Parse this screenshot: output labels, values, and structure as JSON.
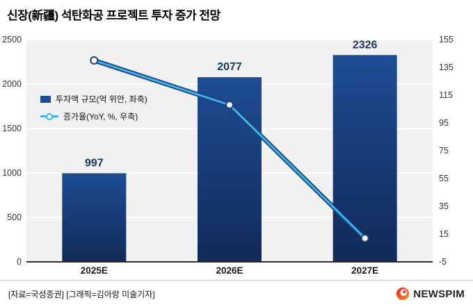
{
  "title": "신장(新疆) 석탄화공 프로젝트 투자 증가 전망",
  "footer": {
    "source": "[자료=국성증권] [그래픽=김아랑 미술기자]",
    "logo_text": "NEWSPIM"
  },
  "colors": {
    "bar_top": "#1e4c94",
    "bar_bottom": "#102a58",
    "bar_label": "#17365d",
    "line_outer": "#1b3f7e",
    "line_inner": "#3cb4e5",
    "marker_fill": "#ffffff",
    "plot_bg": "#f1f1f1",
    "grid": "#ffffff",
    "axis_text": "#333333",
    "logo_orange": "#f04e23"
  },
  "chart_data": {
    "type": "bar",
    "subtype": "bar+line combo, dual axis",
    "categories": [
      "2025E",
      "2026E",
      "2027E"
    ],
    "series": [
      {
        "name": "투자액 규모(억 위안, 좌축)",
        "type": "bar",
        "axis": "left",
        "values": [
          997,
          2077,
          2326
        ],
        "data_labels": [
          "997",
          "2077",
          "2326"
        ]
      },
      {
        "name": "증가율(YoY, %, 우축)",
        "type": "line",
        "axis": "right",
        "values": [
          140,
          108,
          12
        ]
      }
    ],
    "left_axis": {
      "min": 0,
      "max": 2500,
      "ticks": [
        0,
        500,
        1000,
        1500,
        2000,
        2500
      ]
    },
    "right_axis": {
      "min": -5,
      "max": 155,
      "ticks": [
        -5,
        15,
        35,
        55,
        75,
        95,
        115,
        135,
        155
      ]
    },
    "grid": true,
    "legend_position": "inside-left"
  }
}
